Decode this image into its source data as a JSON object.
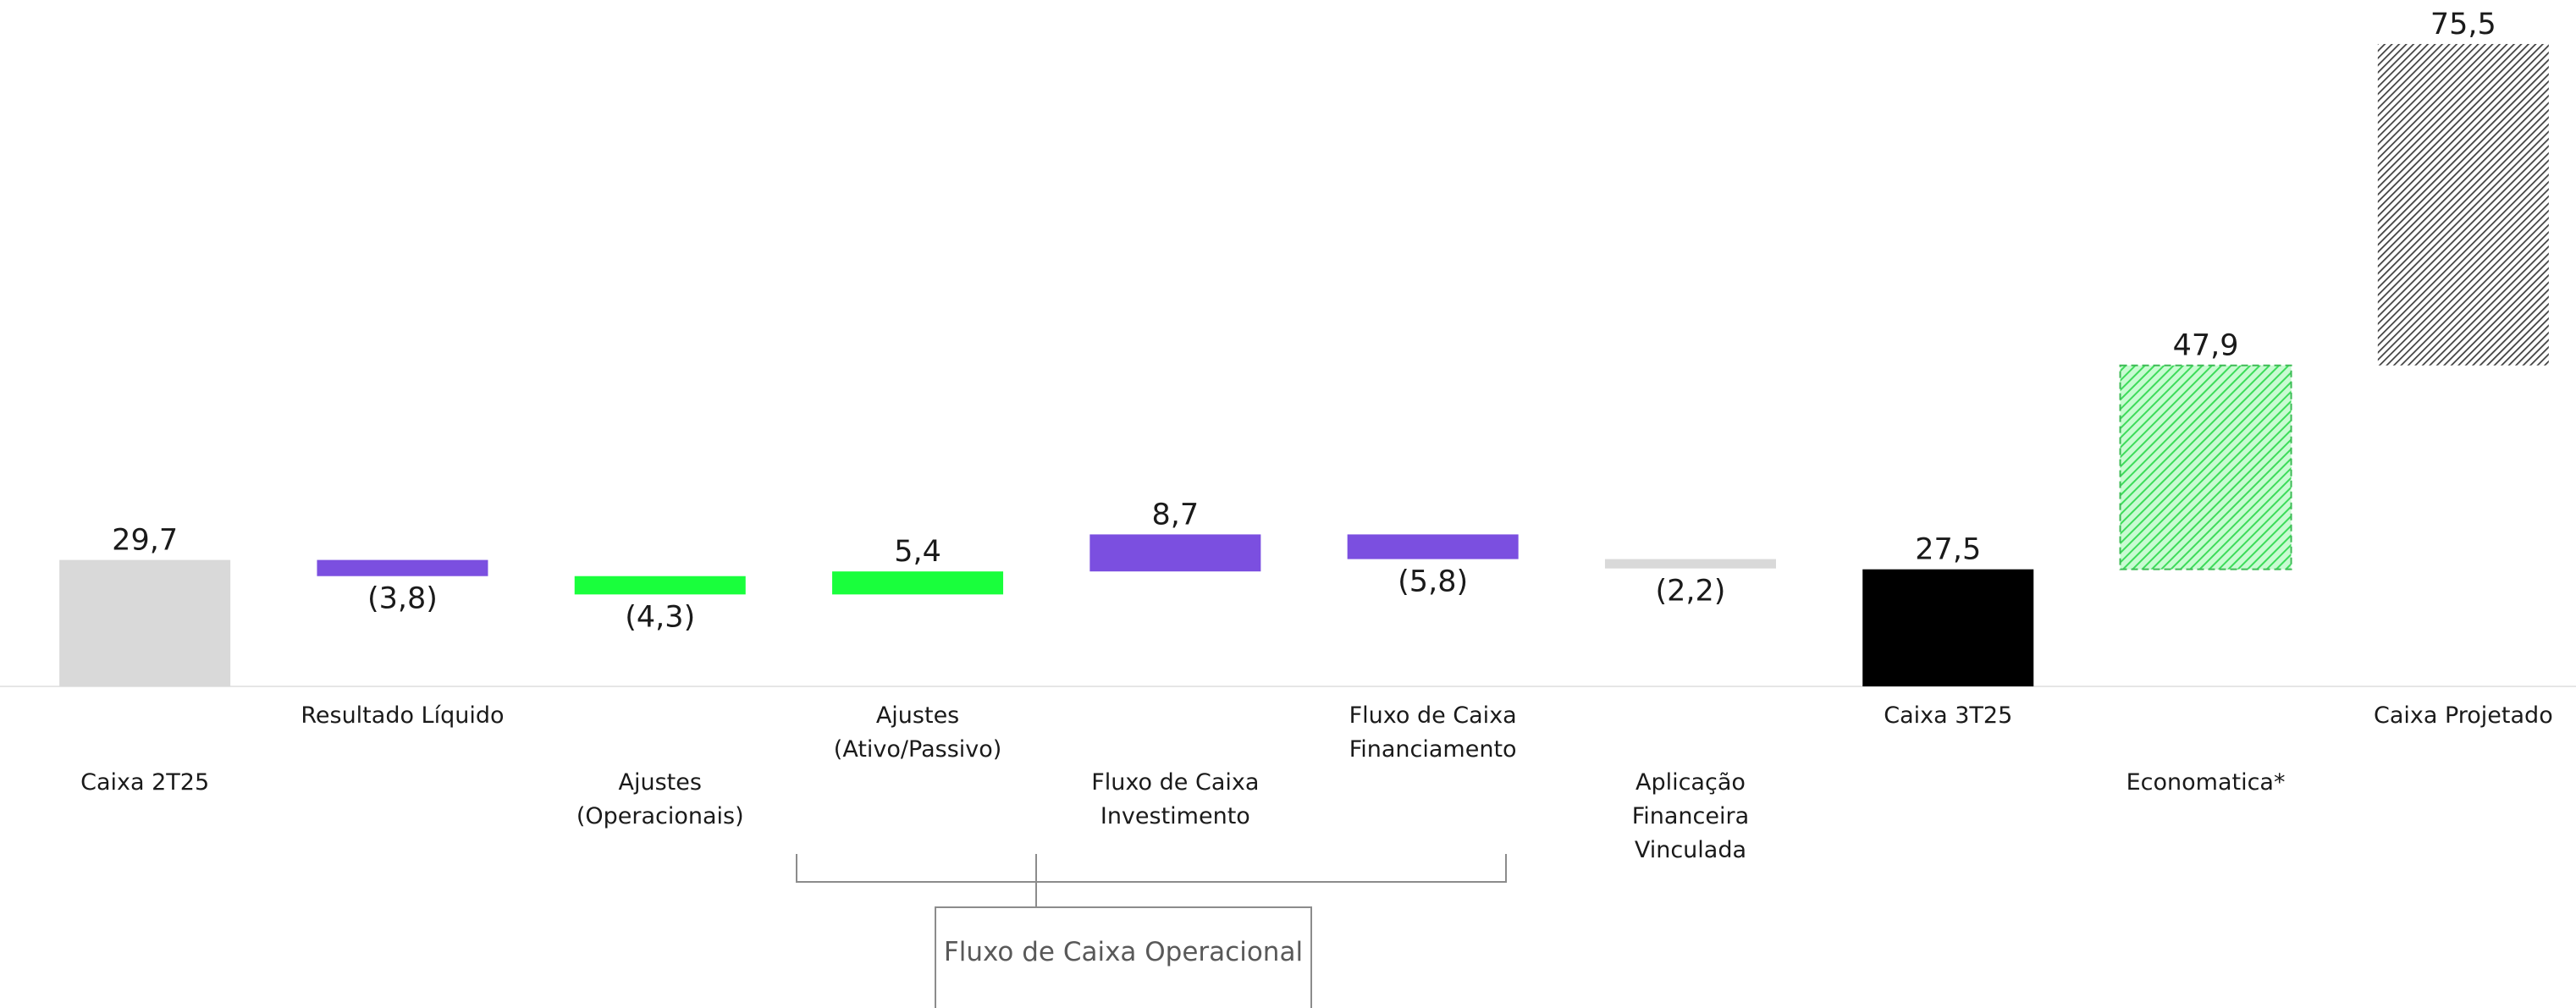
{
  "chart_data": {
    "type": "waterfall",
    "categories": [
      "Caixa 2T25",
      "Resultado Líquido",
      "Ajustes (Operacionais)",
      "Ajustes (Ativo/Passivo)",
      "Fluxo de Caixa Investimento",
      "Fluxo de Caixa Financiamento",
      "Aplicação Financeira Vinculada",
      "Caixa 3T25",
      "Economatica*",
      "Caixa Projetado"
    ],
    "values": [
      29.7,
      -3.8,
      -4.3,
      5.4,
      8.7,
      -5.8,
      -2.2,
      27.5,
      47.9,
      75.5
    ],
    "value_labels": [
      "29,7",
      "(3,8)",
      "(4,3)",
      "5,4",
      "8,7",
      "(5,8)",
      "(2,2)",
      "27,5",
      "47,9",
      "75,5"
    ],
    "measure": [
      "absolute",
      "relative",
      "relative",
      "relative",
      "relative",
      "relative",
      "relative",
      "total",
      "relative",
      "relative"
    ],
    "colors": [
      "#d9d9d9",
      "#7b4fe0",
      "#19ff3c",
      "#19ff3c",
      "#7b4fe0",
      "#7b4fe0",
      "#d9d9d9",
      "#000000",
      "#a6f5b4",
      "#595959"
    ],
    "hatched": [
      false,
      false,
      false,
      false,
      false,
      false,
      false,
      false,
      true,
      true
    ],
    "annotation": "Fluxo de Caixa Operacional"
  }
}
